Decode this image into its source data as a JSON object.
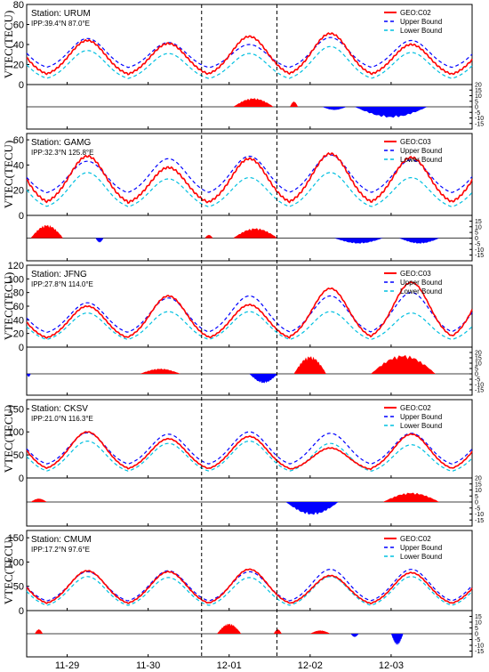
{
  "chart_data": {
    "type": "line",
    "x_axis": {
      "range": [
        "11-28 12:00",
        "12-03 24:00"
      ],
      "ticks": [
        {
          "label": "11-29",
          "value": 1
        },
        {
          "label": "11-30",
          "value": 2
        },
        {
          "label": "12-01",
          "value": 3
        },
        {
          "label": "12-02",
          "value": 4
        },
        {
          "label": "12-03",
          "value": 5
        }
      ]
    },
    "event_markers_x": [
      2.66,
      3.59
    ],
    "legend": {
      "upper": "Upper Bound",
      "lower": "Lower Bound"
    },
    "colors": {
      "observed": "#ff0000",
      "upper": "#0000ff",
      "lower": "#00c0e0",
      "pos": "#ff0000",
      "neg": "#0000ff"
    },
    "panels": [
      {
        "station": "Station: URUM",
        "ipp": "IPP:39.4°N 87.0°E",
        "satellite": "GEO:C02",
        "ylabel": "VTEC(TECU)",
        "ylim": [
          0,
          80
        ],
        "yticks": [
          0,
          20,
          40,
          60,
          80
        ],
        "diff_ylim": [
          -20,
          20
        ],
        "diff_ticks": [
          20,
          15,
          10,
          5,
          0,
          -5,
          -10,
          -15
        ],
        "day_peaks": [
          {
            "obs": 44,
            "up": 46,
            "low": 34
          },
          {
            "obs": 41,
            "up": 42,
            "low": 31
          },
          {
            "obs": 48,
            "up": 40,
            "low": 31
          },
          {
            "obs": 51,
            "up": 47,
            "low": 38
          },
          {
            "obs": 40,
            "up": 44,
            "low": 32
          }
        ],
        "night": {
          "obs": 8,
          "up": 15,
          "low": 4
        },
        "anomalies": [
          {
            "x0": 3.05,
            "x1": 3.55,
            "amp": 8
          },
          {
            "x0": 3.75,
            "x1": 3.85,
            "amp": 5
          },
          {
            "x0": 4.55,
            "x1": 5.45,
            "amp": -10
          },
          {
            "x0": 4.15,
            "x1": 4.45,
            "amp": -3
          }
        ]
      },
      {
        "station": "Station: GAMG",
        "ipp": "IPP:32.3°N 125.8°E",
        "satellite": "GEO:C03",
        "ylabel": "VTEC(TECU)",
        "ylim": [
          0,
          65
        ],
        "yticks": [
          0,
          20,
          40,
          60
        ],
        "diff_ylim": [
          -20,
          20
        ],
        "diff_ticks": [
          15,
          10,
          5,
          0,
          -5,
          -10,
          -15
        ],
        "day_peaks": [
          {
            "obs": 47,
            "up": 43,
            "low": 34
          },
          {
            "obs": 38,
            "up": 45,
            "low": 29
          },
          {
            "obs": 45,
            "up": 47,
            "low": 30
          },
          {
            "obs": 49,
            "up": 48,
            "low": 34
          },
          {
            "obs": 46,
            "up": 44,
            "low": 30
          }
        ],
        "night": {
          "obs": 8,
          "up": 16,
          "low": 5
        },
        "anomalies": [
          {
            "x0": 0.55,
            "x1": 0.95,
            "amp": 12
          },
          {
            "x0": 1.35,
            "x1": 1.45,
            "amp": -4
          },
          {
            "x0": 3.05,
            "x1": 3.6,
            "amp": 9
          },
          {
            "x0": 2.7,
            "x1": 2.8,
            "amp": 3
          },
          {
            "x0": 4.3,
            "x1": 4.9,
            "amp": -5
          },
          {
            "x0": 5.1,
            "x1": 5.6,
            "amp": -5
          }
        ]
      },
      {
        "station": "Station: JFNG",
        "ipp": "IPP:27.8°N 114.0°E",
        "satellite": "GEO:C03",
        "ylabel": "VTEC(TECU)",
        "ylim": [
          0,
          120
        ],
        "yticks": [
          0,
          20,
          40,
          60,
          80,
          100,
          120
        ],
        "diff_ylim": [
          -20,
          25
        ],
        "diff_ticks": [
          20,
          15,
          10,
          5,
          0,
          -5,
          -10,
          -15
        ],
        "day_peaks": [
          {
            "obs": 60,
            "up": 65,
            "low": 50
          },
          {
            "obs": 75,
            "up": 72,
            "low": 52
          },
          {
            "obs": 62,
            "up": 75,
            "low": 52
          },
          {
            "obs": 86,
            "up": 75,
            "low": 52
          },
          {
            "obs": 95,
            "up": 80,
            "low": 50
          }
        ],
        "night": {
          "obs": 10,
          "up": 18,
          "low": 8
        },
        "anomalies": [
          {
            "x0": 1.9,
            "x1": 2.4,
            "amp": 5
          },
          {
            "x0": 3.25,
            "x1": 3.6,
            "amp": -9
          },
          {
            "x0": 3.8,
            "x1": 4.2,
            "amp": 17
          },
          {
            "x0": 4.75,
            "x1": 5.55,
            "amp": 18
          },
          {
            "x0": 0.5,
            "x1": 0.55,
            "amp": -3
          }
        ]
      },
      {
        "station": "Station: CKSV",
        "ipp": "IPP:21.0°N 116.3°E",
        "satellite": "GEO:C02",
        "ylabel": "VTEC(TECU)",
        "ylim": [
          0,
          170
        ],
        "yticks": [
          0,
          50,
          100,
          150
        ],
        "diff_ylim": [
          -20,
          20
        ],
        "diff_ticks": [
          20,
          15,
          10,
          5,
          0,
          -5,
          -10,
          -15
        ],
        "day_peaks": [
          {
            "obs": 100,
            "up": 98,
            "low": 80
          },
          {
            "obs": 85,
            "up": 95,
            "low": 75
          },
          {
            "obs": 90,
            "up": 100,
            "low": 80
          },
          {
            "obs": 65,
            "up": 97,
            "low": 75
          },
          {
            "obs": 95,
            "up": 97,
            "low": 72
          }
        ],
        "night": {
          "obs": 15,
          "up": 25,
          "low": 10
        },
        "anomalies": [
          {
            "x0": 0.55,
            "x1": 0.75,
            "amp": 3
          },
          {
            "x0": 3.7,
            "x1": 4.35,
            "amp": -11
          },
          {
            "x0": 4.9,
            "x1": 5.6,
            "amp": 8
          }
        ]
      },
      {
        "station": "Station: CMUM",
        "ipp": "IPP:17.2°N 97.6°E",
        "satellite": "GEO:C02",
        "ylabel": "VTEC(TECU)",
        "ylim": [
          0,
          165
        ],
        "yticks": [
          0,
          50,
          100,
          150
        ],
        "diff_ylim": [
          -20,
          20
        ],
        "diff_ticks": [
          15,
          10,
          5,
          0,
          -5,
          -10,
          -15
        ],
        "day_peaks": [
          {
            "obs": 82,
            "up": 80,
            "low": 70
          },
          {
            "obs": 80,
            "up": 82,
            "low": 68
          },
          {
            "obs": 85,
            "up": 80,
            "low": 68
          },
          {
            "obs": 72,
            "up": 85,
            "low": 70
          },
          {
            "obs": 78,
            "up": 85,
            "low": 70
          }
        ],
        "night": {
          "obs": 10,
          "up": 15,
          "low": 6
        },
        "anomalies": [
          {
            "x0": 0.6,
            "x1": 0.7,
            "amp": 4
          },
          {
            "x0": 2.85,
            "x1": 3.15,
            "amp": 9
          },
          {
            "x0": 3.55,
            "x1": 3.65,
            "amp": 4
          },
          {
            "x0": 4.0,
            "x1": 4.25,
            "amp": 3
          },
          {
            "x0": 4.5,
            "x1": 4.6,
            "amp": -3
          },
          {
            "x0": 5.0,
            "x1": 5.15,
            "amp": -10
          }
        ]
      }
    ]
  }
}
